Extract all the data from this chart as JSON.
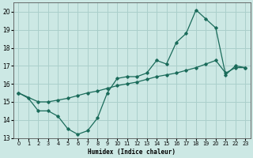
{
  "xlabel": "Humidex (Indice chaleur)",
  "bg_color": "#cce8e4",
  "grid_color": "#aacfcb",
  "line_color": "#1a6b5a",
  "xlim": [
    -0.5,
    23.5
  ],
  "ylim": [
    13,
    20.5
  ],
  "yticks": [
    13,
    14,
    15,
    16,
    17,
    18,
    19,
    20
  ],
  "xticks": [
    0,
    1,
    2,
    3,
    4,
    5,
    6,
    7,
    8,
    9,
    10,
    11,
    12,
    13,
    14,
    15,
    16,
    17,
    18,
    19,
    20,
    21,
    22,
    23
  ],
  "line1_x": [
    0,
    1,
    2,
    3,
    4,
    5,
    6,
    7,
    8,
    9,
    10,
    11,
    12,
    13,
    14,
    15,
    16,
    17,
    18,
    19,
    20,
    21,
    22,
    23
  ],
  "line1_y": [
    15.5,
    15.2,
    14.5,
    14.5,
    14.2,
    13.5,
    13.2,
    13.4,
    14.1,
    15.5,
    16.3,
    16.4,
    16.4,
    16.6,
    17.3,
    17.1,
    18.3,
    18.8,
    20.1,
    19.6,
    19.1,
    16.5,
    17.0,
    16.9
  ],
  "line2_x": [
    0,
    2,
    3,
    4,
    5,
    6,
    7,
    8,
    9,
    10,
    11,
    12,
    13,
    14,
    15,
    16,
    17,
    18,
    19,
    20,
    21,
    22,
    23
  ],
  "line2_y": [
    15.5,
    15.0,
    15.0,
    15.1,
    15.2,
    15.35,
    15.5,
    15.6,
    15.75,
    15.9,
    16.0,
    16.1,
    16.25,
    16.4,
    16.5,
    16.6,
    16.75,
    16.9,
    17.1,
    17.3,
    16.6,
    16.9,
    16.9
  ]
}
